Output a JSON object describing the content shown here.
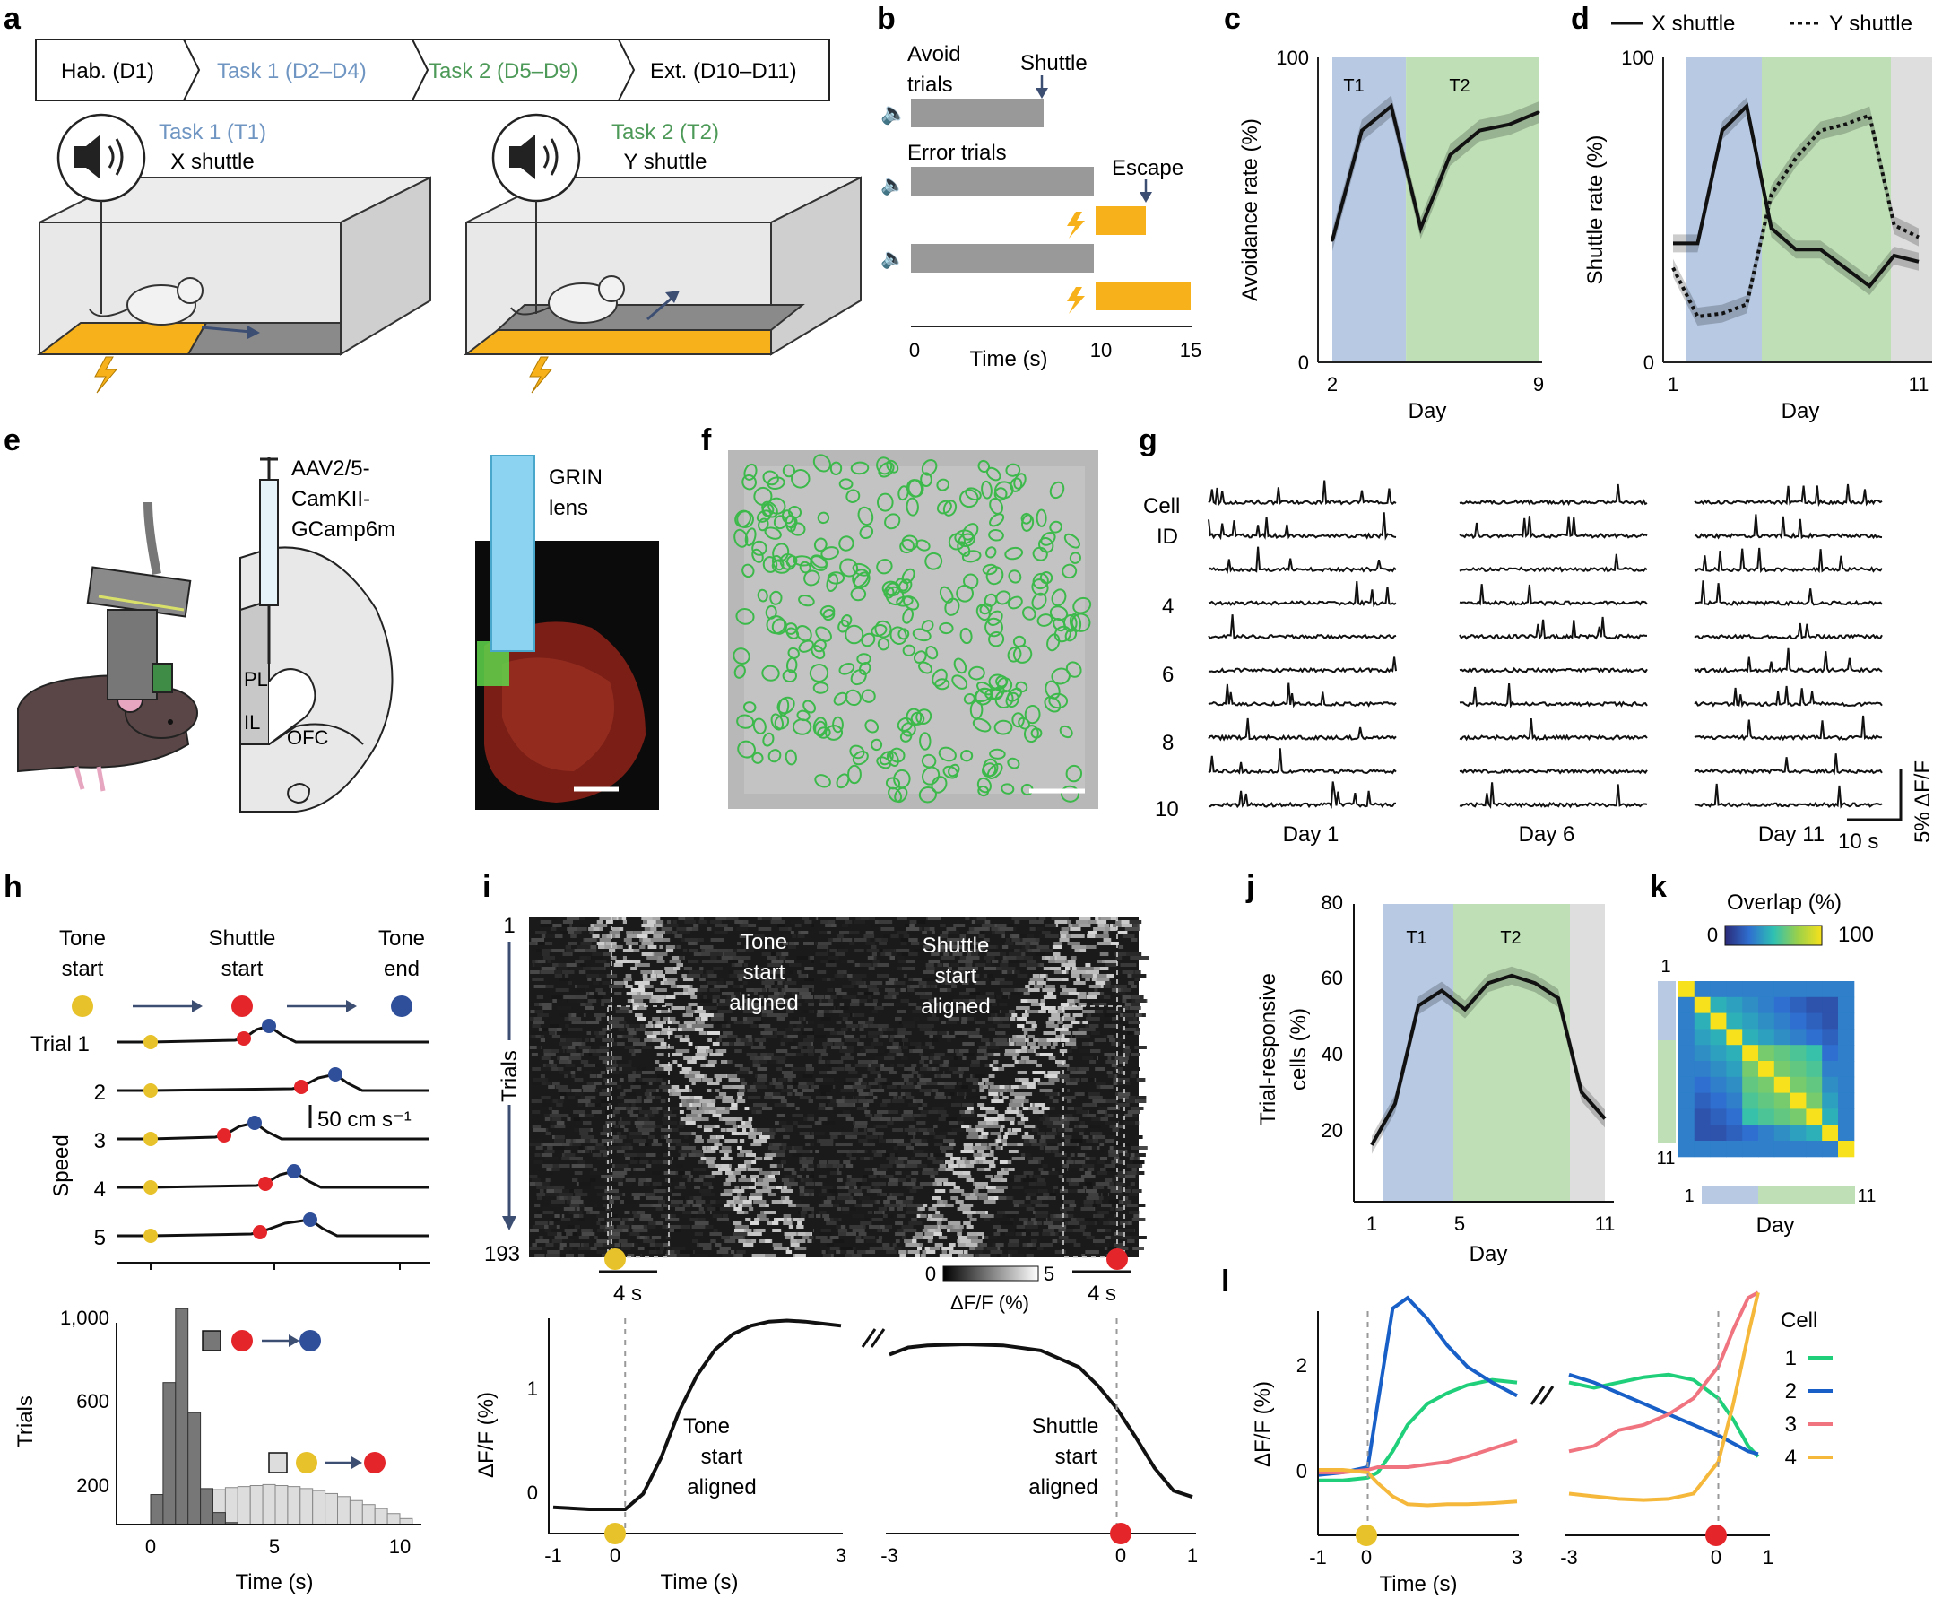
{
  "figure": {
    "panel_labels": [
      "a",
      "b",
      "c",
      "d",
      "e",
      "f",
      "g",
      "h",
      "i",
      "j",
      "k",
      "l"
    ],
    "colors": {
      "task1": "#6f95c2",
      "task2": "#4d9a58",
      "task1_fill": "#b7c9e3",
      "task2_fill": "#bfe0b6",
      "ext_fill": "#dedede",
      "shock": "#f7b21b",
      "tone": "#e7c22a",
      "shuttle": "#e4262b",
      "end": "#2f4f9a"
    }
  },
  "panel_a": {
    "timeline": [
      "Hab. (D1)",
      "Task 1 (D2–D4)",
      "Task 2 (D5–D9)",
      "Ext. (D10–D11)"
    ],
    "task1_title": "Task 1 (T1)",
    "task1_sub": "X shuttle",
    "task2_title": "Task 2 (T2)",
    "task2_sub": "Y shuttle",
    "icons": [
      "speaker-icon",
      "mouse-icon",
      "lightning-icon"
    ]
  },
  "panel_b": {
    "avoid": "Avoid",
    "trials1": "trials",
    "shuttle": "Shuttle",
    "error": "Error trials",
    "escape": "Escape",
    "xticks": [
      "0",
      "10",
      "15"
    ],
    "xlabel": "Time (s)"
  },
  "panel_c": {
    "chart_data": {
      "type": "line",
      "x": [
        2,
        3,
        4,
        5,
        6,
        7,
        8,
        9
      ],
      "y": [
        40,
        76,
        84,
        44,
        68,
        76,
        78,
        82
      ],
      "xlim": [
        2,
        9
      ],
      "ylim": [
        0,
        100
      ],
      "xticks": [
        "2",
        "9"
      ],
      "yticks": [
        "0",
        "100"
      ],
      "xlabel": "Day",
      "ylabel": "Avoidance rate (%)",
      "bands": [
        {
          "label": "T1",
          "from": 2,
          "to": 4.5
        },
        {
          "label": "T2",
          "from": 4.5,
          "to": 9
        }
      ]
    }
  },
  "panel_d": {
    "legend": [
      "X shuttle",
      "Y shuttle"
    ],
    "chart_data": {
      "type": "line",
      "x": [
        1,
        2,
        3,
        4,
        5,
        6,
        7,
        8,
        9,
        10,
        11
      ],
      "series": [
        {
          "name": "X shuttle",
          "values": [
            39,
            39,
            76,
            84,
            44,
            37,
            37,
            31,
            25,
            35,
            33
          ]
        },
        {
          "name": "Y shuttle",
          "values": [
            31,
            15,
            16,
            19,
            55,
            67,
            76,
            78,
            81,
            45,
            41
          ]
        }
      ],
      "xlim": [
        1,
        11
      ],
      "ylim": [
        0,
        100
      ],
      "xticks": [
        "1",
        "11"
      ],
      "yticks": [
        "0",
        "100"
      ],
      "xlabel": "Day",
      "ylabel": "Shuttle rate (%)"
    }
  },
  "panel_e": {
    "virus": [
      "AAV2/5-",
      "CamKII-",
      "GCamp6m"
    ],
    "regions": [
      "PL",
      "IL",
      "OFC"
    ],
    "grin": [
      "GRIN",
      "lens"
    ]
  },
  "panel_g": {
    "cell_label": [
      "Cell",
      "ID"
    ],
    "row_labels": [
      "4",
      "6",
      "8",
      "10"
    ],
    "days": [
      "Day 1",
      "Day 6",
      "Day 11"
    ],
    "scale_y": "5% ΔF/F",
    "scale_x": "10 s"
  },
  "panel_h": {
    "events": [
      "Tone\nstart",
      "Shuttle\nstart",
      "Tone\nend"
    ],
    "trial_labels": [
      "Trial 1",
      "2",
      "3",
      "4",
      "5"
    ],
    "speed": "Speed",
    "scale": "50 cm s⁻¹",
    "chart_data": {
      "type": "bar",
      "xlabel": "Time (s)",
      "ylabel": "Trials",
      "xticks": [
        "0",
        "5",
        "10"
      ],
      "yticks": [
        "200",
        "600",
        "1,000"
      ],
      "series": [
        {
          "name": "shuttle→end",
          "bins": [
            0,
            0.5,
            1,
            1.5,
            2,
            2.5,
            3
          ],
          "values": [
            150,
            710,
            1080,
            560,
            180,
            60,
            10
          ]
        },
        {
          "name": "tone→shuttle",
          "bins": [
            0,
            0.5,
            1,
            1.5,
            2,
            2.5,
            3,
            3.5,
            4,
            4.5,
            5,
            5.5,
            6,
            6.5,
            7,
            7.5,
            8,
            8.5,
            9,
            9.5,
            10
          ],
          "values": [
            40,
            90,
            120,
            150,
            165,
            175,
            185,
            190,
            195,
            200,
            195,
            190,
            180,
            170,
            155,
            140,
            120,
            100,
            80,
            55,
            30
          ]
        }
      ]
    }
  },
  "panel_i": {
    "row_top": "1",
    "row_bottom": "193",
    "trials": "Trials",
    "left_title": [
      "Tone",
      "start",
      "aligned"
    ],
    "right_title": [
      "Shuttle",
      "start",
      "aligned"
    ],
    "scale": "4 s",
    "cbar_min": "0",
    "cbar_max": "5",
    "cbar_label": "ΔF/F (%)",
    "chart_data": {
      "type": "line",
      "ylabel": "ΔF/F (%)",
      "xlabel": "Time (s)",
      "left": {
        "x": [
          -1,
          -0.5,
          0,
          0.25,
          0.5,
          0.75,
          1,
          1.25,
          1.5,
          1.75,
          2,
          2.25,
          2.5,
          2.75,
          3
        ],
        "y": [
          -0.18,
          -0.2,
          -0.2,
          -0.05,
          0.3,
          0.75,
          1.1,
          1.35,
          1.5,
          1.58,
          1.62,
          1.63,
          1.62,
          1.6,
          1.58
        ]
      },
      "right": {
        "x": [
          -3,
          -2.75,
          -2.5,
          -2,
          -1.5,
          -1,
          -0.5,
          -0.25,
          0,
          0.25,
          0.5,
          0.75,
          1
        ],
        "y": [
          1.3,
          1.37,
          1.39,
          1.4,
          1.39,
          1.34,
          1.18,
          1.0,
          0.78,
          0.5,
          0.2,
          -0.02,
          -0.08
        ]
      },
      "left_xticks": [
        "-1",
        "0",
        "3"
      ],
      "right_xticks": [
        "-3",
        "0",
        "1"
      ],
      "yticks": [
        "0",
        "1"
      ],
      "left_note": [
        "Tone",
        "start",
        "aligned"
      ],
      "right_note": [
        "Shuttle",
        "start",
        "aligned"
      ]
    }
  },
  "panel_j": {
    "chart_data": {
      "type": "line",
      "x": [
        1,
        2,
        3,
        4,
        5,
        6,
        7,
        8,
        9,
        10,
        11
      ],
      "y": [
        16,
        27,
        53,
        57,
        52,
        59,
        61,
        59,
        55,
        30,
        23
      ],
      "xlim": [
        1,
        11
      ],
      "ylim": [
        10,
        80
      ],
      "xticks": [
        "1",
        "5",
        "11"
      ],
      "yticks": [
        "20",
        "40",
        "60",
        "80"
      ],
      "xlabel": "Day",
      "ylabel": "Trial-responsive cells (%)",
      "bands": [
        {
          "label": "T1",
          "from": 1.5,
          "to": 4.5
        },
        {
          "label": "T2",
          "from": 4.5,
          "to": 9.5
        },
        {
          "label": "",
          "from": 9.5,
          "to": 11
        }
      ]
    }
  },
  "panel_k": {
    "title": "Overlap (%)",
    "cbar_min": "0",
    "cbar_max": "100",
    "axis_1": "1",
    "axis_11": "11",
    "xlabel": "Day"
  },
  "panel_l": {
    "ylabel": "ΔF/F (%)",
    "xlabel": "Time (s)",
    "legend_title": "Cell",
    "cells": [
      {
        "name": "1",
        "color": "#1fcf7a"
      },
      {
        "name": "2",
        "color": "#1860c8"
      },
      {
        "name": "3",
        "color": "#f07480"
      },
      {
        "name": "4",
        "color": "#f5b83a"
      }
    ],
    "left_xticks": [
      "-1",
      "0",
      "3"
    ],
    "right_xticks": [
      "-3",
      "0",
      "1"
    ],
    "yticks": [
      "0",
      "2"
    ]
  }
}
